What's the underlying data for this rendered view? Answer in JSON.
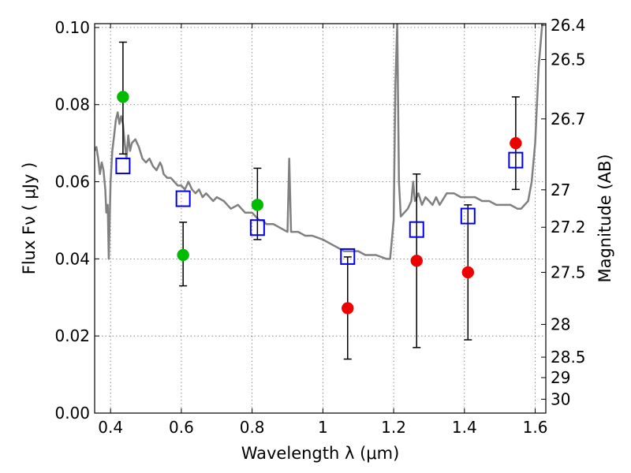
{
  "chart_data": {
    "type": "scatter",
    "xlabel": "Wavelength  λ (μm)",
    "ylabel": "Flux  Fν  ( μJy )",
    "ylabel_right": "Magnitude (AB)",
    "xlim": [
      0.355,
      1.63
    ],
    "ylim": [
      0.0,
      0.101
    ],
    "x_ticks": [
      0.4,
      0.6,
      0.8,
      1.0,
      1.2,
      1.4,
      1.6
    ],
    "x_tick_labels": [
      "0.4",
      "0.6",
      "0.8",
      "1",
      "1.2",
      "1.4",
      "1.6"
    ],
    "y_ticks": [
      0.0,
      0.02,
      0.04,
      0.06,
      0.08,
      0.1
    ],
    "y_tick_labels": [
      "0.00",
      "0.02",
      "0.04",
      "0.06",
      "0.08",
      "0.10"
    ],
    "right_ticks": [
      {
        "label": "26.4",
        "flux": 0.1006
      },
      {
        "label": "26.5",
        "flux": 0.0917
      },
      {
        "label": "26.7",
        "flux": 0.0763
      },
      {
        "label": "27",
        "flux": 0.0579
      },
      {
        "label": "27.2",
        "flux": 0.0482
      },
      {
        "label": "27.5",
        "flux": 0.0365
      },
      {
        "label": "28",
        "flux": 0.023
      },
      {
        "label": "28.5",
        "flux": 0.0145
      },
      {
        "label": "29",
        "flux": 0.0092
      },
      {
        "label": "30",
        "flux": 0.0036
      }
    ],
    "grid": true,
    "series": [
      {
        "kind": "line",
        "color": "#808080",
        "points": [
          [
            0.355,
            0.068
          ],
          [
            0.36,
            0.069
          ],
          [
            0.365,
            0.066
          ],
          [
            0.37,
            0.062
          ],
          [
            0.375,
            0.065
          ],
          [
            0.38,
            0.063
          ],
          [
            0.385,
            0.058
          ],
          [
            0.388,
            0.052
          ],
          [
            0.392,
            0.054
          ],
          [
            0.395,
            0.04
          ],
          [
            0.4,
            0.06
          ],
          [
            0.405,
            0.068
          ],
          [
            0.41,
            0.072
          ],
          [
            0.415,
            0.076
          ],
          [
            0.42,
            0.078
          ],
          [
            0.425,
            0.075
          ],
          [
            0.43,
            0.077
          ],
          [
            0.435,
            0.075
          ],
          [
            0.44,
            0.07
          ],
          [
            0.445,
            0.066
          ],
          [
            0.45,
            0.072
          ],
          [
            0.455,
            0.068
          ],
          [
            0.46,
            0.07
          ],
          [
            0.47,
            0.071
          ],
          [
            0.48,
            0.069
          ],
          [
            0.49,
            0.066
          ],
          [
            0.5,
            0.065
          ],
          [
            0.51,
            0.066
          ],
          [
            0.52,
            0.064
          ],
          [
            0.53,
            0.063
          ],
          [
            0.54,
            0.065
          ],
          [
            0.545,
            0.064
          ],
          [
            0.55,
            0.062
          ],
          [
            0.56,
            0.061
          ],
          [
            0.57,
            0.061
          ],
          [
            0.58,
            0.06
          ],
          [
            0.59,
            0.059
          ],
          [
            0.6,
            0.059
          ],
          [
            0.61,
            0.058
          ],
          [
            0.62,
            0.06
          ],
          [
            0.63,
            0.058
          ],
          [
            0.64,
            0.057
          ],
          [
            0.65,
            0.058
          ],
          [
            0.66,
            0.056
          ],
          [
            0.67,
            0.057
          ],
          [
            0.68,
            0.056
          ],
          [
            0.69,
            0.055
          ],
          [
            0.7,
            0.056
          ],
          [
            0.72,
            0.055
          ],
          [
            0.74,
            0.053
          ],
          [
            0.76,
            0.054
          ],
          [
            0.78,
            0.052
          ],
          [
            0.8,
            0.052
          ],
          [
            0.81,
            0.051
          ],
          [
            0.82,
            0.05
          ],
          [
            0.83,
            0.05
          ],
          [
            0.84,
            0.049
          ],
          [
            0.86,
            0.049
          ],
          [
            0.88,
            0.048
          ],
          [
            0.9,
            0.047
          ],
          [
            0.905,
            0.066
          ],
          [
            0.91,
            0.047
          ],
          [
            0.93,
            0.047
          ],
          [
            0.95,
            0.046
          ],
          [
            0.97,
            0.046
          ],
          [
            1.0,
            0.045
          ],
          [
            1.02,
            0.044
          ],
          [
            1.04,
            0.043
          ],
          [
            1.06,
            0.042
          ],
          [
            1.08,
            0.042
          ],
          [
            1.1,
            0.042
          ],
          [
            1.12,
            0.041
          ],
          [
            1.15,
            0.041
          ],
          [
            1.18,
            0.04
          ],
          [
            1.19,
            0.04
          ],
          [
            1.2,
            0.05
          ],
          [
            1.205,
            0.085
          ],
          [
            1.21,
            0.101
          ],
          [
            1.215,
            0.06
          ],
          [
            1.22,
            0.051
          ],
          [
            1.24,
            0.053
          ],
          [
            1.25,
            0.055
          ],
          [
            1.255,
            0.06
          ],
          [
            1.26,
            0.055
          ],
          [
            1.27,
            0.057
          ],
          [
            1.28,
            0.054
          ],
          [
            1.29,
            0.056
          ],
          [
            1.3,
            0.055
          ],
          [
            1.31,
            0.054
          ],
          [
            1.32,
            0.056
          ],
          [
            1.33,
            0.054
          ],
          [
            1.35,
            0.057
          ],
          [
            1.37,
            0.057
          ],
          [
            1.39,
            0.056
          ],
          [
            1.41,
            0.056
          ],
          [
            1.43,
            0.056
          ],
          [
            1.45,
            0.055
          ],
          [
            1.47,
            0.055
          ],
          [
            1.49,
            0.054
          ],
          [
            1.51,
            0.054
          ],
          [
            1.53,
            0.054
          ],
          [
            1.55,
            0.053
          ],
          [
            1.56,
            0.053
          ],
          [
            1.58,
            0.055
          ],
          [
            1.59,
            0.06
          ],
          [
            1.6,
            0.07
          ],
          [
            1.61,
            0.09
          ],
          [
            1.62,
            0.101
          ]
        ]
      },
      {
        "kind": "points",
        "marker": "circle",
        "color": "#00bb00",
        "points": [
          {
            "x": 0.435,
            "y": 0.082,
            "yerr_low": 0.0672,
            "yerr_high": 0.0962
          },
          {
            "x": 0.605,
            "y": 0.041,
            "yerr_low": 0.033,
            "yerr_high": 0.0495
          },
          {
            "x": 0.815,
            "y": 0.054,
            "yerr_low": 0.045,
            "yerr_high": 0.0635
          }
        ]
      },
      {
        "kind": "points",
        "marker": "circle",
        "color": "#ee0000",
        "points": [
          {
            "x": 1.07,
            "y": 0.0272,
            "yerr_low": 0.014,
            "yerr_high": 0.0405
          },
          {
            "x": 1.265,
            "y": 0.0395,
            "yerr_low": 0.017,
            "yerr_high": 0.062
          },
          {
            "x": 1.41,
            "y": 0.0365,
            "yerr_low": 0.019,
            "yerr_high": 0.054
          },
          {
            "x": 1.545,
            "y": 0.07,
            "yerr_low": 0.058,
            "yerr_high": 0.082
          }
        ]
      },
      {
        "kind": "points",
        "marker": "square-open",
        "color": "#0000ee",
        "points": [
          {
            "x": 0.435,
            "y": 0.064
          },
          {
            "x": 0.605,
            "y": 0.0555
          },
          {
            "x": 0.815,
            "y": 0.048
          },
          {
            "x": 1.07,
            "y": 0.0405
          },
          {
            "x": 1.265,
            "y": 0.0475
          },
          {
            "x": 1.41,
            "y": 0.051
          },
          {
            "x": 1.545,
            "y": 0.0655
          }
        ]
      }
    ]
  }
}
